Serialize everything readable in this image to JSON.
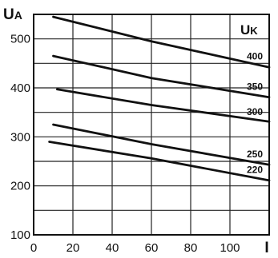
{
  "chart_data": {
    "type": "line",
    "ylabel_main": "U",
    "ylabel_sub": "A",
    "xlabel": "I",
    "xlim": [
      0,
      120
    ],
    "ylim": [
      100,
      550
    ],
    "x_ticks": [
      0,
      20,
      40,
      60,
      80,
      100
    ],
    "y_ticks": [
      100,
      200,
      300,
      400,
      500
    ],
    "grid": true,
    "legend_title_main": "U",
    "legend_title_sub": "K",
    "series": [
      {
        "name": "400",
        "x": [
          10,
          60,
          120
        ],
        "values": [
          545,
          495,
          442
        ]
      },
      {
        "name": "350",
        "x": [
          10,
          60,
          120
        ],
        "values": [
          465,
          420,
          381
        ]
      },
      {
        "name": "300",
        "x": [
          12,
          60,
          120
        ],
        "values": [
          397,
          365,
          331
        ]
      },
      {
        "name": "250",
        "x": [
          10,
          60,
          120
        ],
        "values": [
          325,
          285,
          243
        ]
      },
      {
        "name": "220",
        "x": [
          8,
          60,
          120
        ],
        "values": [
          290,
          256,
          211
        ]
      }
    ]
  }
}
